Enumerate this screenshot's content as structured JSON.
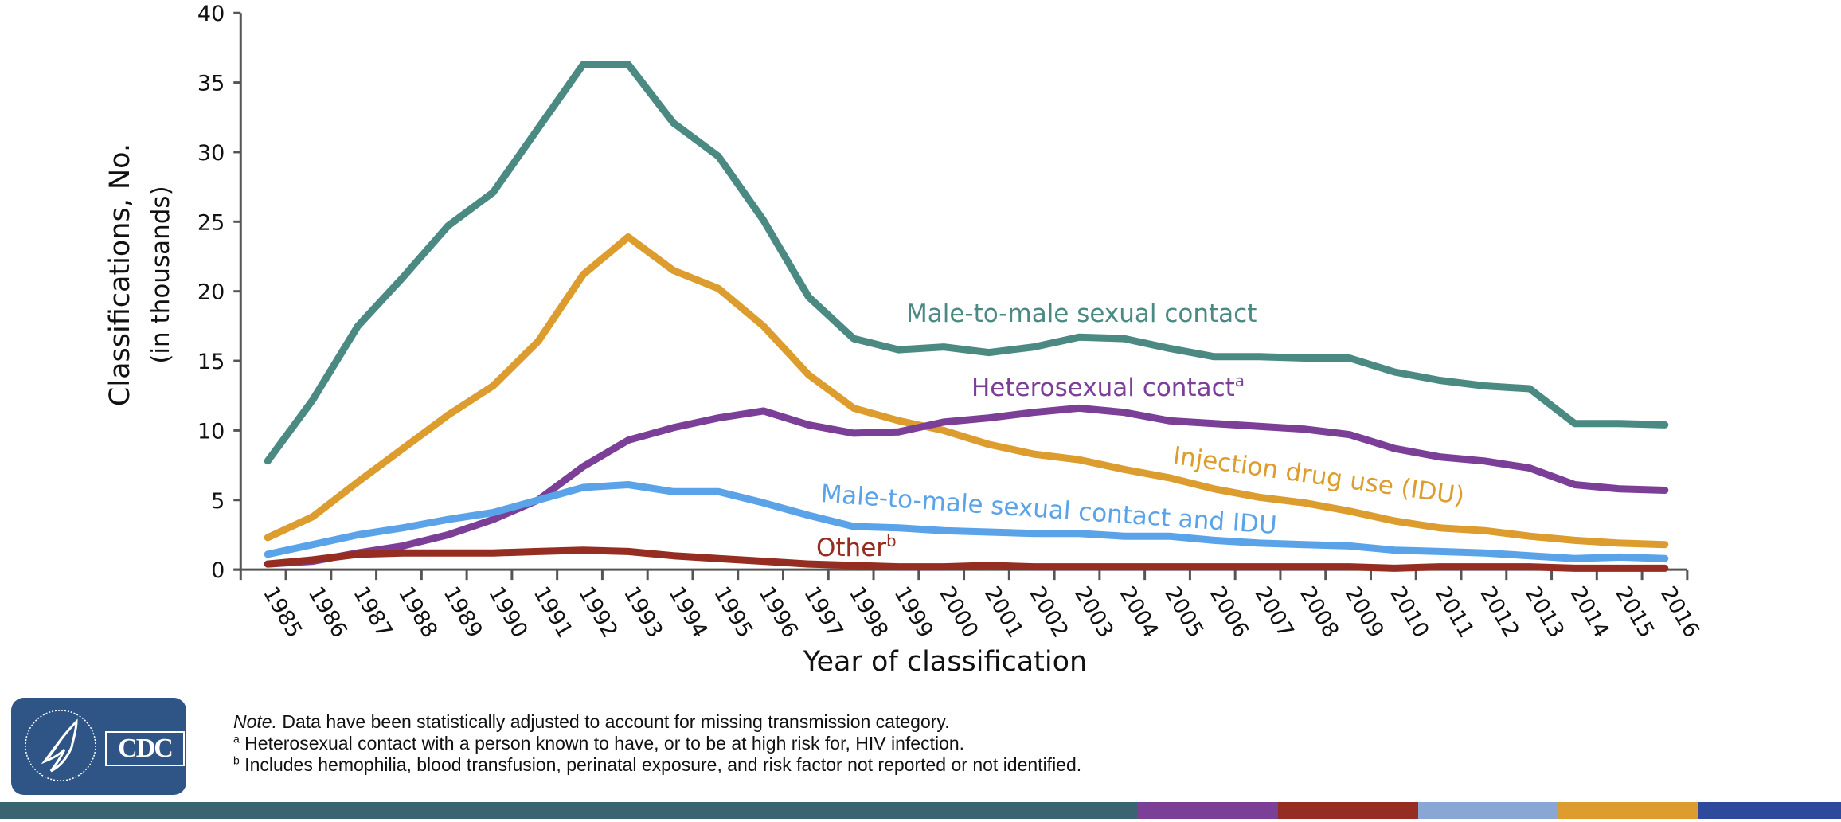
{
  "chart_data": {
    "type": "line",
    "title": "",
    "xlabel": "Year of classification",
    "ylabel_line1": "Classifications,  No.",
    "ylabel_line2": "(in thousands)",
    "ylim": [
      0,
      40
    ],
    "yticks": [
      0,
      5,
      10,
      15,
      20,
      25,
      30,
      35,
      40
    ],
    "grid": false,
    "legend": "inline labels",
    "x": [
      "1985",
      "1986",
      "1987",
      "1988",
      "1989",
      "1990",
      "1991",
      "1992",
      "1993",
      "1994",
      "1995",
      "1996",
      "1997",
      "1998",
      "1999",
      "2000",
      "2001",
      "2002",
      "2003",
      "2004",
      "2005",
      "2006",
      "2007",
      "2008",
      "2009",
      "2010",
      "2011",
      "2012",
      "2013",
      "2014",
      "2015",
      "2016"
    ],
    "series": [
      {
        "name": "Male-to-male sexual contact",
        "label": "Male-to-male sexual contact",
        "sup": "",
        "color": "#4a8a83",
        "values": [
          7.8,
          12.2,
          17.5,
          21.0,
          24.7,
          27.1,
          31.7,
          36.3,
          36.3,
          32.1,
          29.7,
          25.1,
          19.6,
          16.6,
          15.8,
          16.0,
          15.6,
          16.0,
          16.7,
          16.6,
          15.9,
          15.3,
          15.3,
          15.2,
          15.2,
          14.2,
          13.6,
          13.2,
          13.0,
          10.5,
          10.5,
          10.4
        ]
      },
      {
        "name": "Injection drug use (IDU)",
        "label": "Injection drug use (IDU)",
        "sup": "",
        "color": "#dd9c2e",
        "values": [
          2.3,
          3.8,
          6.3,
          8.7,
          11.1,
          13.2,
          16.4,
          21.2,
          23.9,
          21.5,
          20.2,
          17.5,
          14.0,
          11.6,
          10.7,
          10.0,
          9.0,
          8.3,
          7.9,
          7.2,
          6.6,
          5.8,
          5.2,
          4.8,
          4.2,
          3.5,
          3.0,
          2.8,
          2.4,
          2.1,
          1.9,
          1.8
        ]
      },
      {
        "name": "Heterosexual contact",
        "label": "Heterosexual contact",
        "sup": "a",
        "color": "#7b3f98",
        "values": [
          0.4,
          0.6,
          1.2,
          1.7,
          2.5,
          3.6,
          5.0,
          7.4,
          9.3,
          10.2,
          10.9,
          11.4,
          10.4,
          9.8,
          9.9,
          10.6,
          10.9,
          11.3,
          11.6,
          11.3,
          10.7,
          10.5,
          10.3,
          10.1,
          9.7,
          8.7,
          8.1,
          7.8,
          7.3,
          6.1,
          5.8,
          5.7
        ]
      },
      {
        "name": "Male-to-male sexual contact and IDU",
        "label": "Male-to-male sexual contact and IDU",
        "sup": "",
        "color": "#5aa3e8",
        "values": [
          1.1,
          1.8,
          2.5,
          3.0,
          3.6,
          4.1,
          5.0,
          5.9,
          6.1,
          5.6,
          5.6,
          4.8,
          3.9,
          3.1,
          3.0,
          2.8,
          2.7,
          2.6,
          2.6,
          2.4,
          2.4,
          2.1,
          1.9,
          1.8,
          1.7,
          1.4,
          1.3,
          1.2,
          1.0,
          0.8,
          0.9,
          0.8
        ]
      },
      {
        "name": "Other",
        "label": "Other",
        "sup": "b",
        "color": "#962d22",
        "values": [
          0.4,
          0.7,
          1.1,
          1.2,
          1.2,
          1.2,
          1.3,
          1.4,
          1.3,
          1.0,
          0.8,
          0.6,
          0.4,
          0.3,
          0.2,
          0.2,
          0.3,
          0.2,
          0.2,
          0.2,
          0.2,
          0.2,
          0.2,
          0.2,
          0.2,
          0.1,
          0.2,
          0.2,
          0.2,
          0.1,
          0.1,
          0.1
        ]
      }
    ]
  },
  "notes": {
    "note_label": "Note.",
    "note_text": " Data have been statistically adjusted to account for missing transmission category.",
    "footnote_a_mark": "a",
    "footnote_a": " Heterosexual contact with a person known to have, or to be at high risk for, HIV infection.",
    "footnote_b_mark": "b",
    "footnote_b": " Includes hemophilia, blood transfusion, perinatal exposure, and risk factor not reported or not identified."
  },
  "logo": {
    "text": "CDC",
    "alt": "Department of Health & Human Services USA / CDC"
  },
  "footer_bar_colors": [
    "#3a6470",
    "#7b3f98",
    "#962d22",
    "#8aa6d4",
    "#dd9c2e",
    "#2f4a9a"
  ]
}
